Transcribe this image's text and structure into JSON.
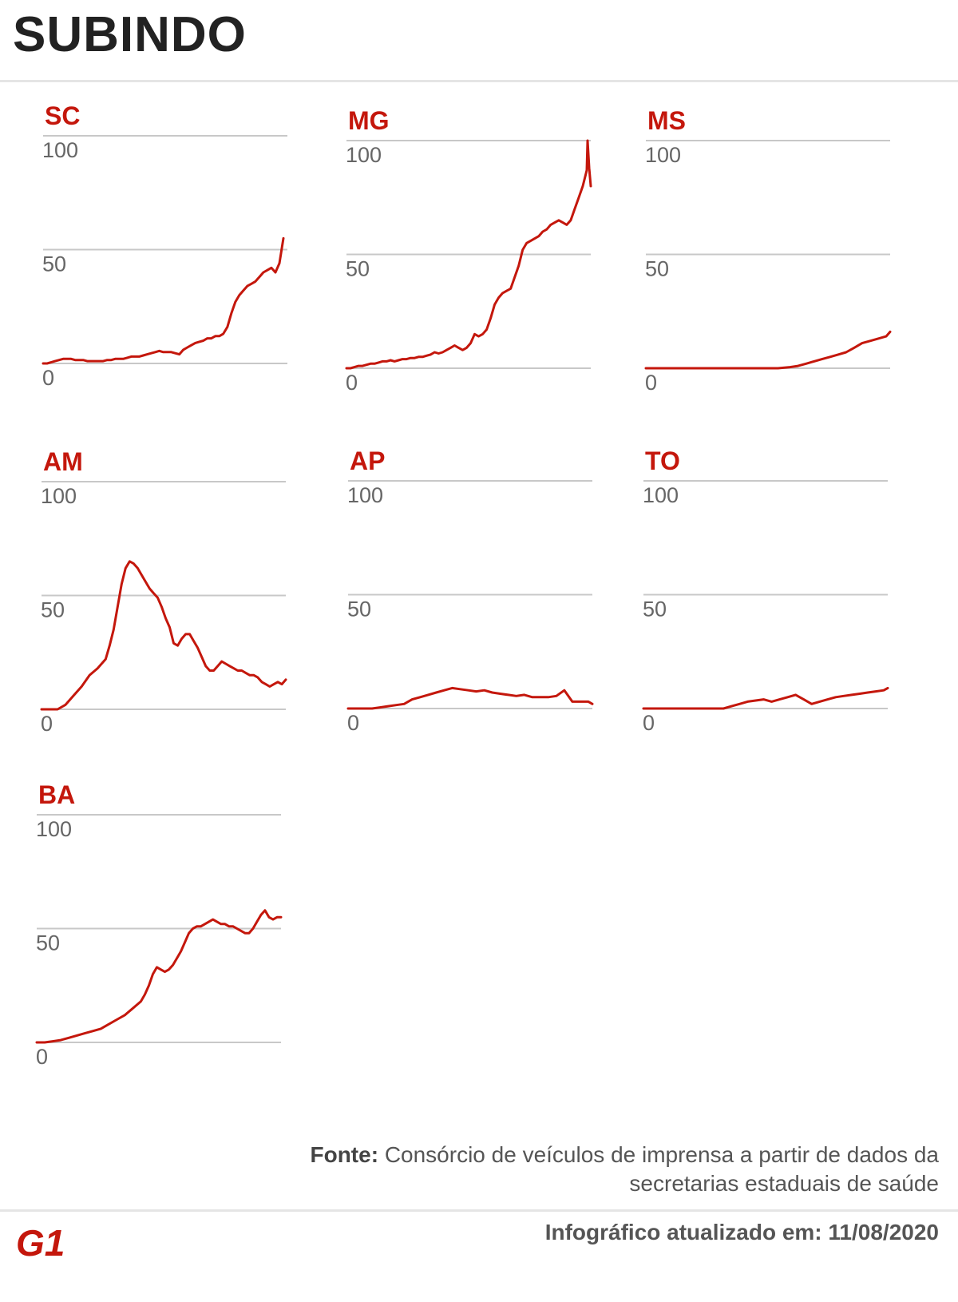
{
  "title": "SUBINDO",
  "source": {
    "label": "Fonte:",
    "text": "Consórcio de veículos de imprensa a partir de dados da secretarias estaduais de saúde"
  },
  "updated": "Infográfico atualizado em: 11/08/2020",
  "brand": "G1",
  "colors": {
    "line": "#c4170c",
    "label": "#c4170c",
    "grid": "#c8c8c8",
    "ticks": "#666666"
  },
  "chart_data": [
    {
      "type": "line",
      "title": "SC",
      "ylim": [
        0,
        100
      ],
      "yticks": [
        0,
        50,
        100
      ],
      "grid": true,
      "x": [
        0,
        5,
        10,
        15,
        20,
        25,
        30,
        35,
        40,
        45,
        50,
        55,
        60,
        65,
        70,
        75,
        80,
        85,
        90,
        95,
        100,
        105,
        110,
        115,
        120,
        125,
        130,
        135,
        140,
        145,
        150,
        155,
        160,
        165,
        170,
        175,
        180,
        185,
        190,
        195,
        200,
        205,
        210,
        215,
        220,
        225,
        230,
        235,
        240,
        245,
        250,
        255,
        260,
        265,
        270,
        275,
        280,
        285,
        290,
        295,
        300
      ],
      "values": [
        0,
        0,
        0.5,
        1,
        1.5,
        2,
        2,
        2,
        1.5,
        1.5,
        1.5,
        1,
        1,
        1,
        1,
        1,
        1.5,
        1.5,
        2,
        2,
        2,
        2.5,
        3,
        3,
        3,
        3.5,
        4,
        4.5,
        5,
        5.5,
        5,
        5,
        5,
        4.5,
        4,
        6,
        7,
        8,
        9,
        9.5,
        10,
        11,
        11,
        12,
        12,
        13,
        16,
        22,
        27,
        30,
        32,
        34,
        35,
        36,
        38,
        40,
        41,
        42,
        40,
        44,
        55
      ]
    },
    {
      "type": "line",
      "title": "MG",
      "ylim": [
        0,
        100
      ],
      "yticks": [
        0,
        50,
        100
      ],
      "grid": true,
      "x": [
        0,
        5,
        10,
        15,
        20,
        25,
        30,
        35,
        40,
        45,
        50,
        55,
        60,
        65,
        70,
        75,
        80,
        85,
        90,
        95,
        100,
        105,
        110,
        115,
        120,
        125,
        130,
        135,
        140,
        145,
        150,
        155,
        160,
        165,
        170,
        175,
        180,
        185,
        190,
        195,
        200,
        205,
        210,
        215,
        220,
        225,
        230,
        235,
        240,
        245,
        250,
        255,
        260,
        265,
        270,
        275,
        280,
        285,
        290,
        295,
        300,
        301,
        303,
        305
      ],
      "values": [
        0,
        0,
        0.5,
        1,
        1,
        1.5,
        2,
        2,
        2.5,
        3,
        3,
        3.5,
        3,
        3.5,
        4,
        4,
        4.5,
        4.5,
        5,
        5,
        5.5,
        6,
        7,
        6.5,
        7,
        8,
        9,
        10,
        9,
        8,
        9,
        11,
        15,
        14,
        15,
        17,
        22,
        28,
        31,
        33,
        34,
        35,
        40,
        45,
        52,
        55,
        56,
        57,
        58,
        60,
        61,
        63,
        64,
        65,
        64,
        63,
        65,
        70,
        75,
        80,
        87,
        100,
        88,
        80
      ]
    },
    {
      "type": "line",
      "title": "MS",
      "ylim": [
        0,
        100
      ],
      "yticks": [
        0,
        50,
        100
      ],
      "grid": true,
      "x": [
        0,
        15,
        30,
        45,
        60,
        75,
        90,
        105,
        120,
        135,
        150,
        165,
        180,
        190,
        200,
        210,
        220,
        230,
        240,
        250,
        260,
        270,
        280,
        290,
        300,
        305
      ],
      "values": [
        0,
        0,
        0,
        0,
        0,
        0,
        0,
        0,
        0,
        0,
        0,
        0,
        0.5,
        1,
        2,
        3,
        4,
        5,
        6,
        7,
        9,
        11,
        12,
        13,
        14,
        16
      ]
    },
    {
      "type": "line",
      "title": "AM",
      "ylim": [
        0,
        100
      ],
      "yticks": [
        0,
        50,
        100
      ],
      "grid": true,
      "x": [
        0,
        10,
        20,
        30,
        40,
        50,
        60,
        70,
        80,
        85,
        90,
        95,
        100,
        105,
        110,
        115,
        120,
        125,
        130,
        135,
        140,
        145,
        150,
        155,
        160,
        165,
        170,
        175,
        180,
        185,
        190,
        195,
        200,
        205,
        210,
        215,
        220,
        225,
        230,
        235,
        240,
        245,
        250,
        255,
        260,
        265,
        270,
        275,
        280,
        285,
        290,
        295,
        300,
        305
      ],
      "values": [
        0,
        0,
        0,
        2,
        6,
        10,
        15,
        18,
        22,
        28,
        35,
        45,
        55,
        62,
        65,
        64,
        62,
        59,
        56,
        53,
        51,
        49,
        45,
        40,
        36,
        29,
        28,
        31,
        33,
        33,
        30,
        27,
        23,
        19,
        17,
        17,
        19,
        21,
        20,
        19,
        18,
        17,
        17,
        16,
        15,
        15,
        14,
        12,
        11,
        10,
        11,
        12,
        11,
        13
      ]
    },
    {
      "type": "line",
      "title": "AP",
      "ylim": [
        0,
        100
      ],
      "yticks": [
        0,
        50,
        100
      ],
      "grid": true,
      "x": [
        0,
        10,
        20,
        30,
        40,
        50,
        60,
        70,
        80,
        90,
        100,
        110,
        120,
        130,
        140,
        150,
        160,
        170,
        180,
        190,
        200,
        210,
        220,
        230,
        240,
        250,
        260,
        270,
        280,
        290,
        300,
        305
      ],
      "values": [
        0,
        0,
        0,
        0,
        0.5,
        1,
        1.5,
        2,
        4,
        5,
        6,
        7,
        8,
        9,
        8.5,
        8,
        7.5,
        8,
        7,
        6.5,
        6,
        5.5,
        6,
        5,
        5,
        5,
        5.5,
        8,
        3,
        3,
        3,
        2
      ]
    },
    {
      "type": "line",
      "title": "TO",
      "ylim": [
        0,
        100
      ],
      "yticks": [
        0,
        50,
        100
      ],
      "grid": true,
      "x": [
        0,
        20,
        40,
        60,
        80,
        100,
        110,
        120,
        130,
        140,
        150,
        160,
        170,
        180,
        190,
        200,
        210,
        220,
        230,
        240,
        250,
        260,
        270,
        280,
        290,
        300,
        305
      ],
      "values": [
        0,
        0,
        0,
        0,
        0,
        0,
        1,
        2,
        3,
        3.5,
        4,
        3,
        4,
        5,
        6,
        4,
        2,
        3,
        4,
        5,
        5.5,
        6,
        6.5,
        7,
        7.5,
        8,
        9
      ]
    },
    {
      "type": "line",
      "title": "BA",
      "ylim": [
        0,
        100
      ],
      "yticks": [
        0,
        50,
        100
      ],
      "grid": true,
      "x": [
        0,
        10,
        20,
        30,
        40,
        50,
        60,
        70,
        80,
        90,
        100,
        110,
        120,
        130,
        135,
        140,
        145,
        150,
        155,
        160,
        165,
        170,
        175,
        180,
        185,
        190,
        195,
        200,
        205,
        210,
        215,
        220,
        225,
        230,
        235,
        240,
        245,
        250,
        255,
        260,
        265,
        270,
        275,
        280,
        285,
        290,
        295,
        300,
        305
      ],
      "values": [
        0,
        0,
        0.5,
        1,
        2,
        3,
        4,
        5,
        6,
        8,
        10,
        12,
        15,
        18,
        21,
        25,
        30,
        33,
        32,
        31,
        32,
        34,
        37,
        40,
        44,
        48,
        50,
        51,
        51,
        52,
        53,
        54,
        53,
        52,
        52,
        51,
        51,
        50,
        49,
        48,
        48,
        50,
        53,
        56,
        58,
        55,
        54,
        55,
        55
      ]
    }
  ]
}
